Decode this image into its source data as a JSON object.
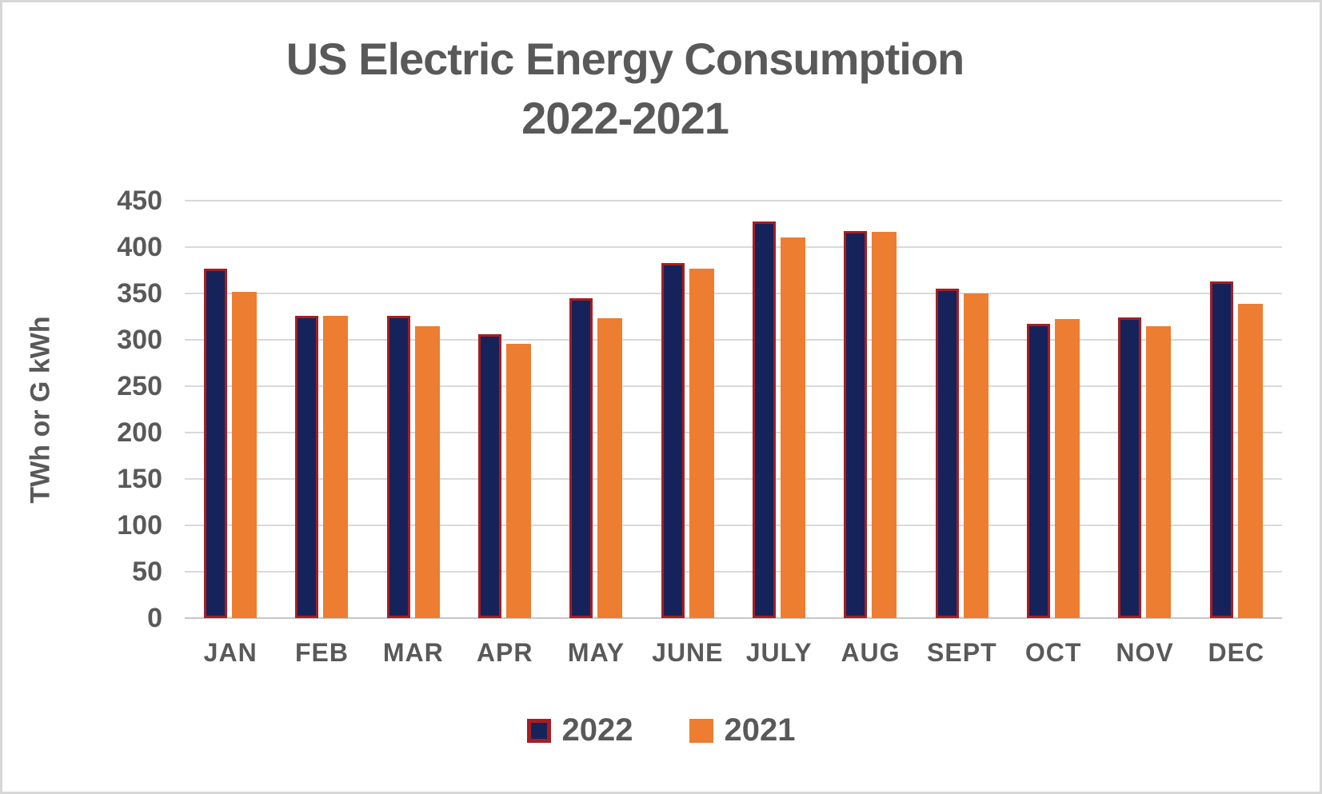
{
  "chart_data": {
    "type": "bar",
    "title": "US Electric Energy Consumption",
    "subtitle": "2022-2021",
    "ylabel": "TWh or  G kWh",
    "ylim": [
      0,
      450
    ],
    "ytick_step": 50,
    "grid": true,
    "legend_position": "bottom",
    "categories": [
      "JAN",
      "FEB",
      "MAR",
      "APR",
      "MAY",
      "JUNE",
      "JULY",
      "AUG",
      "SEPT",
      "OCT",
      "NOV",
      "DEC"
    ],
    "series": [
      {
        "name": "2022",
        "fill_color": "#16235b",
        "border_color": "#a41e23",
        "values": [
          377,
          326,
          326,
          306,
          345,
          383,
          428,
          417,
          355,
          317,
          324,
          363
        ]
      },
      {
        "name": "2021",
        "fill_color": "#ed7d31",
        "border_color": null,
        "values": [
          352,
          326,
          315,
          296,
          323,
          377,
          410,
          416,
          350,
          322,
          315,
          339
        ]
      }
    ],
    "colors": {
      "text": "#595959",
      "gridline": "#d9d9d9",
      "axis_line": "#c6c6c6",
      "figure_border": "#d7d7d7",
      "background": "#ffffff"
    }
  }
}
